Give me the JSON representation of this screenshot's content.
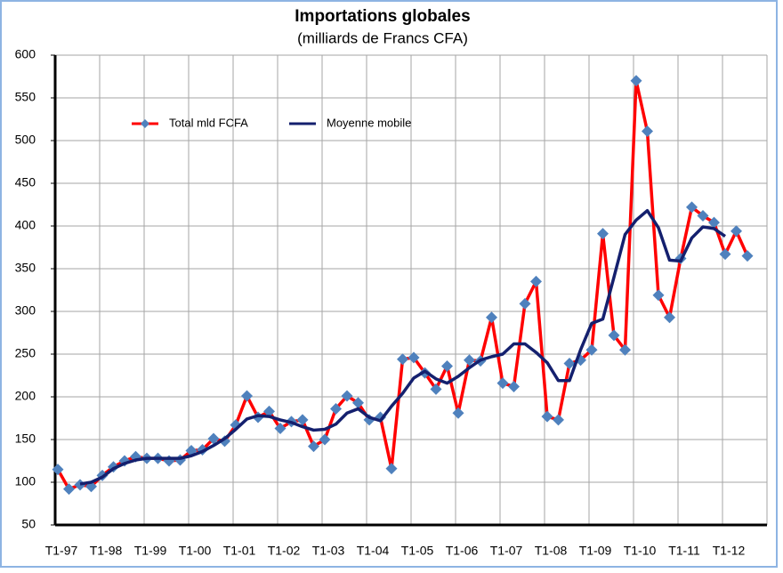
{
  "chart_data": {
    "type": "line",
    "title": "Importations globales",
    "subtitle": "(milliards de Francs CFA)",
    "categories": [
      "T1-97",
      null,
      null,
      null,
      "T1-98",
      null,
      null,
      null,
      "T1-99",
      null,
      null,
      null,
      "T1-00",
      null,
      null,
      null,
      "T1-01",
      null,
      null,
      null,
      "T1-02",
      null,
      null,
      null,
      "T1-03",
      null,
      null,
      null,
      "T1-04",
      null,
      null,
      null,
      "T1-05",
      null,
      null,
      null,
      "T1-06",
      null,
      null,
      null,
      "T1-07",
      null,
      null,
      null,
      "T1-08",
      null,
      null,
      null,
      "T1-09",
      null,
      null,
      null,
      "T1-10",
      null,
      null,
      null,
      "T1-11",
      null,
      null,
      null,
      "T1-12",
      null,
      null
    ],
    "series": [
      {
        "name": "Total mld FCFA",
        "color": "#ff0000",
        "marker_color": "#4f81bd",
        "values": [
          115,
          92,
          97,
          95,
          108,
          118,
          125,
          130,
          128,
          128,
          125,
          126,
          137,
          138,
          151,
          148,
          167,
          201,
          176,
          183,
          163,
          171,
          173,
          142,
          150,
          186,
          201,
          193,
          173,
          176,
          116,
          244,
          246,
          228,
          209,
          236,
          181,
          243,
          242,
          293,
          216,
          212,
          309,
          335,
          177,
          173,
          239,
          243,
          255,
          391,
          272,
          255,
          570,
          511,
          319,
          293,
          362,
          422,
          412,
          404,
          367,
          394,
          365
        ]
      },
      {
        "name": "Moyenne mobile",
        "color": "#14206e",
        "values": [
          null,
          null,
          98,
          100,
          106,
          116,
          122,
          126,
          128,
          128,
          128,
          128,
          131,
          136,
          143,
          151,
          162,
          174,
          178,
          177,
          173,
          170,
          165,
          161,
          162,
          168,
          181,
          186,
          176,
          172,
          189,
          204,
          222,
          230,
          221,
          216,
          224,
          234,
          243,
          247,
          250,
          262,
          262,
          252,
          240,
          219,
          219,
          255,
          286,
          291,
          340,
          390,
          407,
          418,
          398,
          360,
          359,
          386,
          399,
          397,
          388,
          null,
          null
        ]
      }
    ],
    "ylim": [
      50,
      600
    ],
    "yticks": [
      50,
      100,
      150,
      200,
      250,
      300,
      350,
      400,
      450,
      500,
      550,
      600
    ],
    "grid": true,
    "legend": "top-left"
  }
}
